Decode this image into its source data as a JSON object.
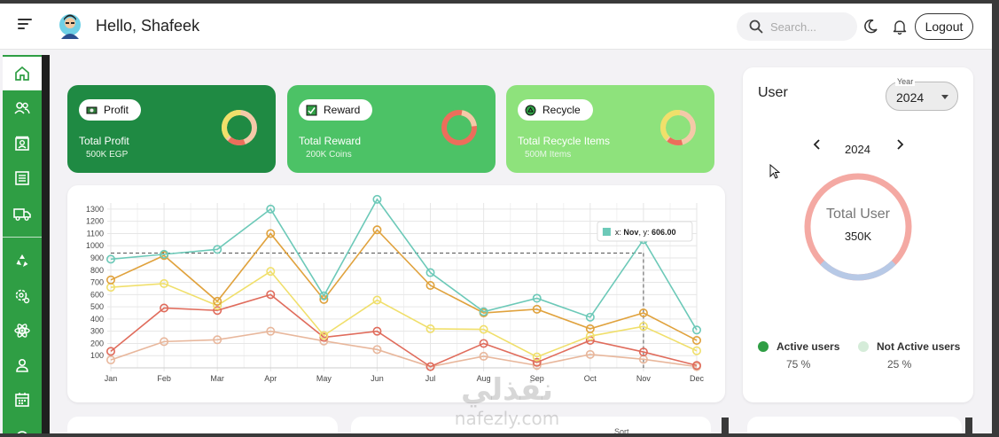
{
  "header": {
    "greeting": "Hello, Shafeek",
    "search_placeholder": "Search...",
    "logout_label": "Logout"
  },
  "sidebar": {
    "items": [
      {
        "icon": "home-icon",
        "active": true
      },
      {
        "icon": "users-icon"
      },
      {
        "icon": "contacts-icon"
      },
      {
        "icon": "list-icon"
      },
      {
        "icon": "truck-icon"
      },
      {
        "icon": "recycle-icon"
      },
      {
        "icon": "settings-icon"
      },
      {
        "icon": "atom-icon"
      },
      {
        "icon": "person-icon"
      },
      {
        "icon": "calendar-icon"
      }
    ]
  },
  "cards": [
    {
      "pill": "Profit",
      "title": "Total Profit",
      "sub": "500K EGP",
      "bg": "#1f8a43",
      "icon": "money-icon"
    },
    {
      "pill": "Reward",
      "title": "Total Reward",
      "sub": "200K Coins",
      "bg": "#4cc266",
      "icon": "reward-icon"
    },
    {
      "pill": "Recycle",
      "title": "Total Recycle Items",
      "sub": "500M Items",
      "bg": "#8ee27c",
      "icon": "recycle-icon"
    }
  ],
  "chart_data": {
    "type": "line",
    "categories": [
      "Jan",
      "Feb",
      "Mar",
      "Apr",
      "May",
      "Jun",
      "Jul",
      "Aug",
      "Sep",
      "Oct",
      "Nov",
      "Dec"
    ],
    "yticks": [
      100,
      200,
      300,
      400,
      500,
      600,
      700,
      800,
      900,
      1000,
      1100,
      1200,
      1300
    ],
    "ylim": [
      0,
      1350
    ],
    "series": [
      {
        "color": "#6cc9b8",
        "values": [
          890,
          930,
          970,
          1300,
          590,
          1380,
          780,
          460,
          570,
          415,
          1050,
          310
        ]
      },
      {
        "color": "#e0a23d",
        "values": [
          720,
          920,
          545,
          1100,
          560,
          1130,
          675,
          450,
          480,
          320,
          450,
          225
        ]
      },
      {
        "color": "#f0df6b",
        "values": [
          660,
          690,
          510,
          790,
          265,
          555,
          320,
          315,
          90,
          260,
          340,
          140
        ]
      },
      {
        "color": "#e06c5c",
        "values": [
          135,
          490,
          470,
          600,
          250,
          300,
          10,
          200,
          45,
          225,
          130,
          20
        ]
      },
      {
        "color": "#e8b79c",
        "values": [
          65,
          215,
          230,
          300,
          220,
          150,
          10,
          95,
          20,
          110,
          70,
          10
        ]
      }
    ],
    "tooltip": {
      "x_prefix": "x: ",
      "x": "Nov",
      "y_prefix": ", y: ",
      "y": "606.00"
    },
    "crosshair": {
      "x": "Nov",
      "y": 940
    },
    "grid": true
  },
  "user_panel": {
    "title": "User",
    "year_label": "Year",
    "year_value": "2024",
    "nav_year": "2024",
    "ring_title": "Total User",
    "ring_value": "350K",
    "active_fraction": 0.75,
    "legend": [
      {
        "label": "Active users",
        "pct": "75 %",
        "color": "#2f9e44"
      },
      {
        "label": "Not Active users",
        "pct": "25 %",
        "color": "#d5ecd9"
      }
    ],
    "ring_colors": [
      "#f4a9a3",
      "#b7c9e6"
    ]
  },
  "bottom": {
    "sort_label": "Sort"
  },
  "watermark": {
    "arabic": "نفذلي",
    "latin": "nafezly.com"
  }
}
